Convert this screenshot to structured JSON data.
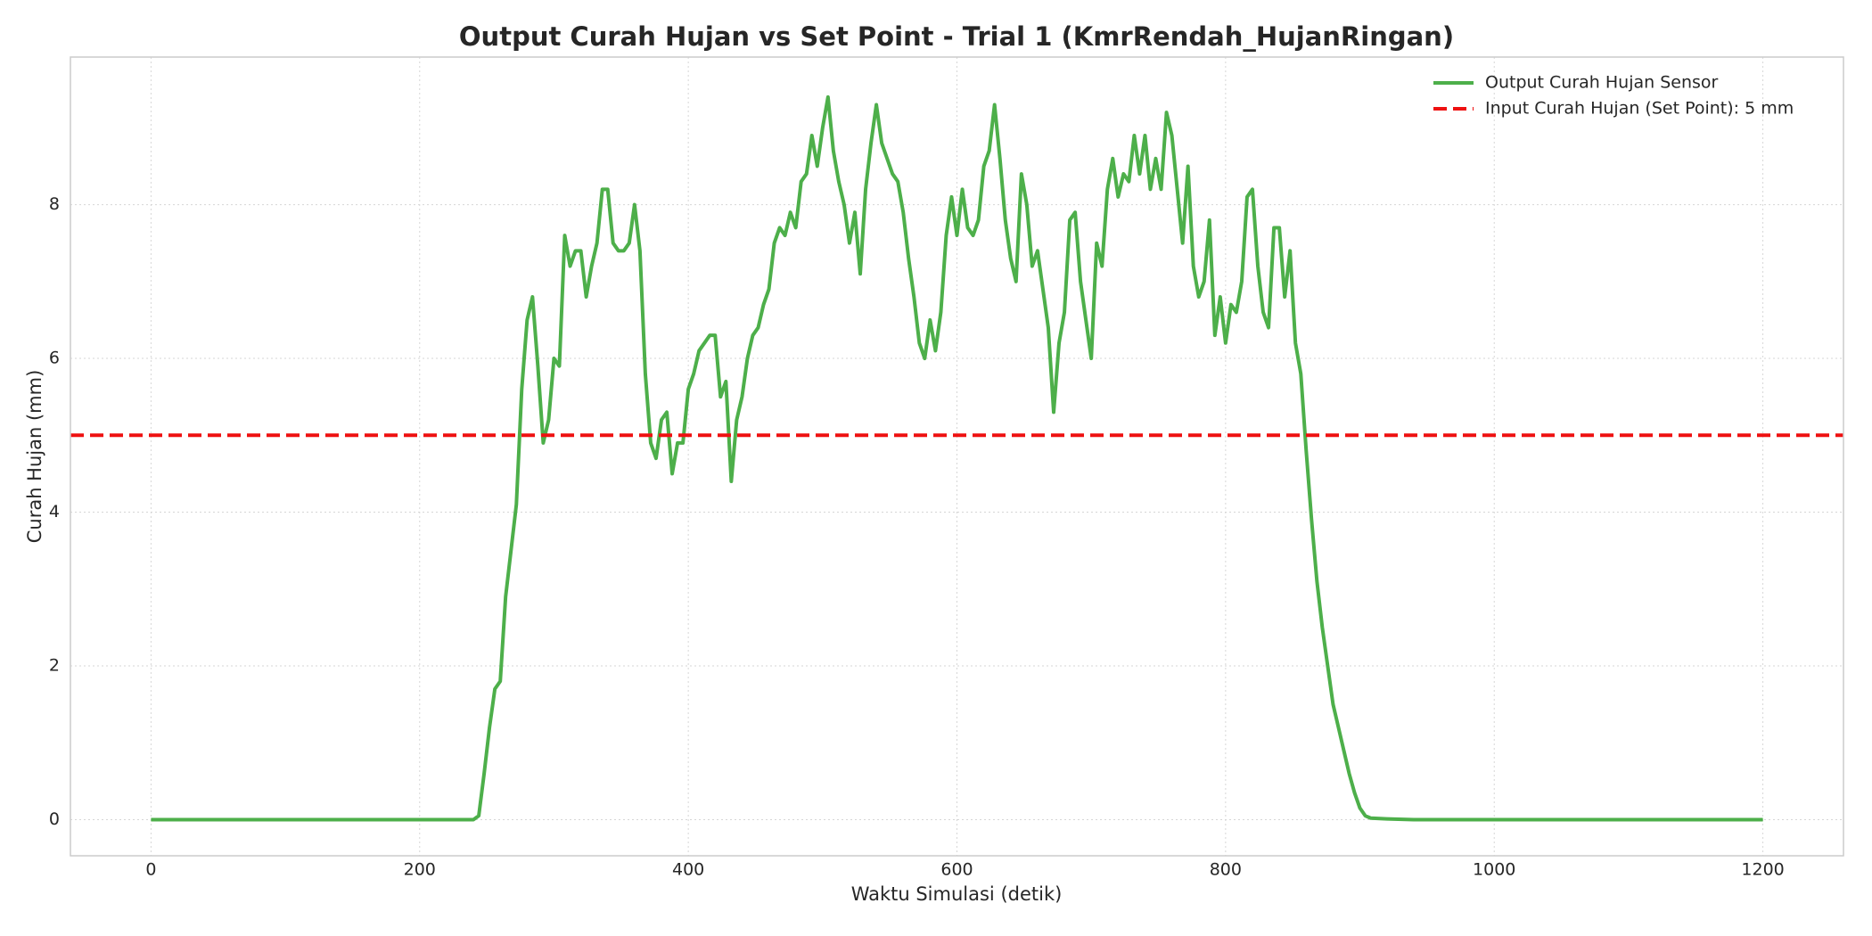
{
  "chart_data": {
    "type": "line",
    "title": "Output Curah Hujan vs Set Point - Trial 1 (KmrRendah_HujanRingan)",
    "x_label": "Waktu Simulasi (detik)",
    "y_label": "Curah Hujan (mm)",
    "x": [
      0,
      240,
      244,
      248,
      252,
      256,
      260,
      264,
      268,
      272,
      276,
      280,
      284,
      288,
      292,
      296,
      300,
      304,
      308,
      312,
      316,
      320,
      324,
      328,
      332,
      336,
      340,
      344,
      348,
      352,
      356,
      360,
      364,
      368,
      372,
      376,
      380,
      384,
      388,
      392,
      396,
      400,
      404,
      408,
      412,
      416,
      420,
      424,
      428,
      432,
      436,
      440,
      444,
      448,
      452,
      456,
      460,
      464,
      468,
      472,
      476,
      480,
      484,
      488,
      492,
      496,
      500,
      504,
      508,
      512,
      516,
      520,
      524,
      528,
      532,
      536,
      540,
      544,
      548,
      552,
      556,
      560,
      564,
      568,
      572,
      576,
      580,
      584,
      588,
      592,
      596,
      600,
      604,
      608,
      612,
      616,
      620,
      624,
      628,
      632,
      636,
      640,
      644,
      648,
      652,
      656,
      660,
      664,
      668,
      672,
      676,
      680,
      684,
      688,
      692,
      696,
      700,
      704,
      708,
      712,
      716,
      720,
      724,
      728,
      732,
      736,
      740,
      744,
      748,
      752,
      756,
      760,
      764,
      768,
      772,
      776,
      780,
      784,
      788,
      792,
      796,
      800,
      804,
      808,
      812,
      816,
      820,
      824,
      828,
      832,
      836,
      840,
      844,
      848,
      852,
      856,
      860,
      864,
      868,
      872,
      876,
      880,
      884,
      888,
      892,
      896,
      900,
      904,
      908,
      920,
      940,
      1200
    ],
    "series": [
      {
        "name": "Output Curah Hujan Sensor",
        "color": "#4daf4a",
        "values": [
          0,
          0,
          0.05,
          0.6,
          1.2,
          1.7,
          1.8,
          2.9,
          3.5,
          4.1,
          5.6,
          6.5,
          6.8,
          5.9,
          4.9,
          5.2,
          6.0,
          5.9,
          7.6,
          7.2,
          7.4,
          7.4,
          6.8,
          7.2,
          7.5,
          8.2,
          8.2,
          7.5,
          7.4,
          7.4,
          7.5,
          8.0,
          7.4,
          5.8,
          4.9,
          4.7,
          5.2,
          5.3,
          4.5,
          4.9,
          4.9,
          5.6,
          5.8,
          6.1,
          6.2,
          6.3,
          6.3,
          5.5,
          5.7,
          4.4,
          5.2,
          5.5,
          6.0,
          6.3,
          6.4,
          6.7,
          6.9,
          7.5,
          7.7,
          7.6,
          7.9,
          7.7,
          8.3,
          8.4,
          8.9,
          8.5,
          9.0,
          9.4,
          8.7,
          8.3,
          8.0,
          7.5,
          7.9,
          7.1,
          8.2,
          8.8,
          9.3,
          8.8,
          8.6,
          8.4,
          8.3,
          7.9,
          7.3,
          6.8,
          6.2,
          6.0,
          6.5,
          6.1,
          6.6,
          7.6,
          8.1,
          7.6,
          8.2,
          7.7,
          7.6,
          7.8,
          8.5,
          8.7,
          9.3,
          8.6,
          7.8,
          7.3,
          7.0,
          8.4,
          8.0,
          7.2,
          7.4,
          6.9,
          6.4,
          5.3,
          6.2,
          6.6,
          7.8,
          7.9,
          7.0,
          6.5,
          6.0,
          7.5,
          7.2,
          8.2,
          8.6,
          8.1,
          8.4,
          8.3,
          8.9,
          8.4,
          8.9,
          8.2,
          8.6,
          8.2,
          9.2,
          8.9,
          8.2,
          7.5,
          8.5,
          7.2,
          6.8,
          7.0,
          7.8,
          6.3,
          6.8,
          6.2,
          6.7,
          6.6,
          7.0,
          8.1,
          8.2,
          7.2,
          6.6,
          6.4,
          7.7,
          7.7,
          6.8,
          7.4,
          6.2,
          5.8,
          4.8,
          3.9,
          3.1,
          2.5,
          2.0,
          1.5,
          1.2,
          0.9,
          0.6,
          0.35,
          0.15,
          0.05,
          0.02,
          0.01,
          0,
          0
        ]
      }
    ],
    "reference_lines": [
      {
        "name": "Input Curah Hujan (Set Point): 5 mm",
        "value": 5,
        "color": "#ee1111",
        "style": "dashed"
      }
    ],
    "xlim": [
      -60,
      1260
    ],
    "ylim": [
      -0.47,
      9.92
    ],
    "xticks": [
      0,
      200,
      400,
      600,
      800,
      1000,
      1200
    ],
    "yticks": [
      0,
      2,
      4,
      6,
      8
    ],
    "grid": true,
    "legend": "upper right"
  }
}
